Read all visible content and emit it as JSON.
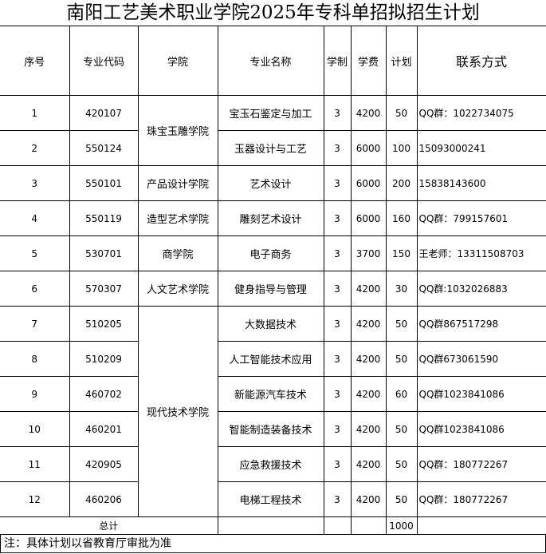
{
  "title": "南阳工艺美术职业学院2025年专科单招拟招生计划",
  "headers": [
    "序号",
    "专业代码",
    "学院",
    "专业名称",
    "学制",
    "学费",
    "计划",
    "联系方式"
  ],
  "rows": [
    {
      "no": "1",
      "code": "420107",
      "college": "珠宝玉雕学院",
      "college_span": 2,
      "major": "宝玉石鉴定与加工",
      "years": "3",
      "fee": "4200",
      "plan": "50",
      "contact": "QQ群：1022734075"
    },
    {
      "no": "2",
      "code": "550124",
      "major": "玉器设计与工艺",
      "years": "3",
      "fee": "6000",
      "plan": "100",
      "contact": "15093000241"
    },
    {
      "no": "3",
      "code": "550101",
      "college": "产品设计学院",
      "college_span": 1,
      "major": "艺术设计",
      "years": "3",
      "fee": "6000",
      "plan": "200",
      "contact": "15838143600"
    },
    {
      "no": "4",
      "code": "550119",
      "college": "造型艺术学院",
      "college_span": 1,
      "major": "雕刻艺术设计",
      "years": "3",
      "fee": "6000",
      "plan": "160",
      "contact": "QQ群：799157601"
    },
    {
      "no": "5",
      "code": "530701",
      "college": "商学院",
      "college_span": 1,
      "major": "电子商务",
      "years": "3",
      "fee": "3700",
      "plan": "150",
      "contact": "王老师：13311508703"
    },
    {
      "no": "6",
      "code": "570307",
      "college": "人文艺术学院",
      "college_span": 1,
      "major": "健身指导与管理",
      "years": "3",
      "fee": "4200",
      "plan": "30",
      "contact": "QQ群:1032026883"
    },
    {
      "no": "7",
      "code": "510205",
      "college": "现代技术学院",
      "college_span": 6,
      "major": "大数据技术",
      "years": "3",
      "fee": "4200",
      "plan": "50",
      "contact": "QQ群867517298"
    },
    {
      "no": "8",
      "code": "510209",
      "major": "人工智能技术应用",
      "years": "3",
      "fee": "4200",
      "plan": "50",
      "contact": "QQ群673061590"
    },
    {
      "no": "9",
      "code": "460702",
      "major": "新能源汽车技术",
      "years": "3",
      "fee": "4200",
      "plan": "60",
      "contact": "QQ群1023841086"
    },
    {
      "no": "10",
      "code": "460201",
      "major": "智能制造装备技术",
      "years": "3",
      "fee": "4200",
      "plan": "50",
      "contact": "QQ群1023841086"
    },
    {
      "no": "11",
      "code": "420905",
      "major": "应急救援技术",
      "years": "3",
      "fee": "4200",
      "plan": "50",
      "contact": "QQ群：180772267"
    },
    {
      "no": "12",
      "code": "460206",
      "major": "电梯工程技术",
      "years": "3",
      "fee": "4200",
      "plan": "50",
      "contact": "QQ群：180772267"
    }
  ],
  "total": {
    "label": "总计",
    "plan": "1000"
  },
  "note": "注：具体计划以省教育厅审批为准"
}
